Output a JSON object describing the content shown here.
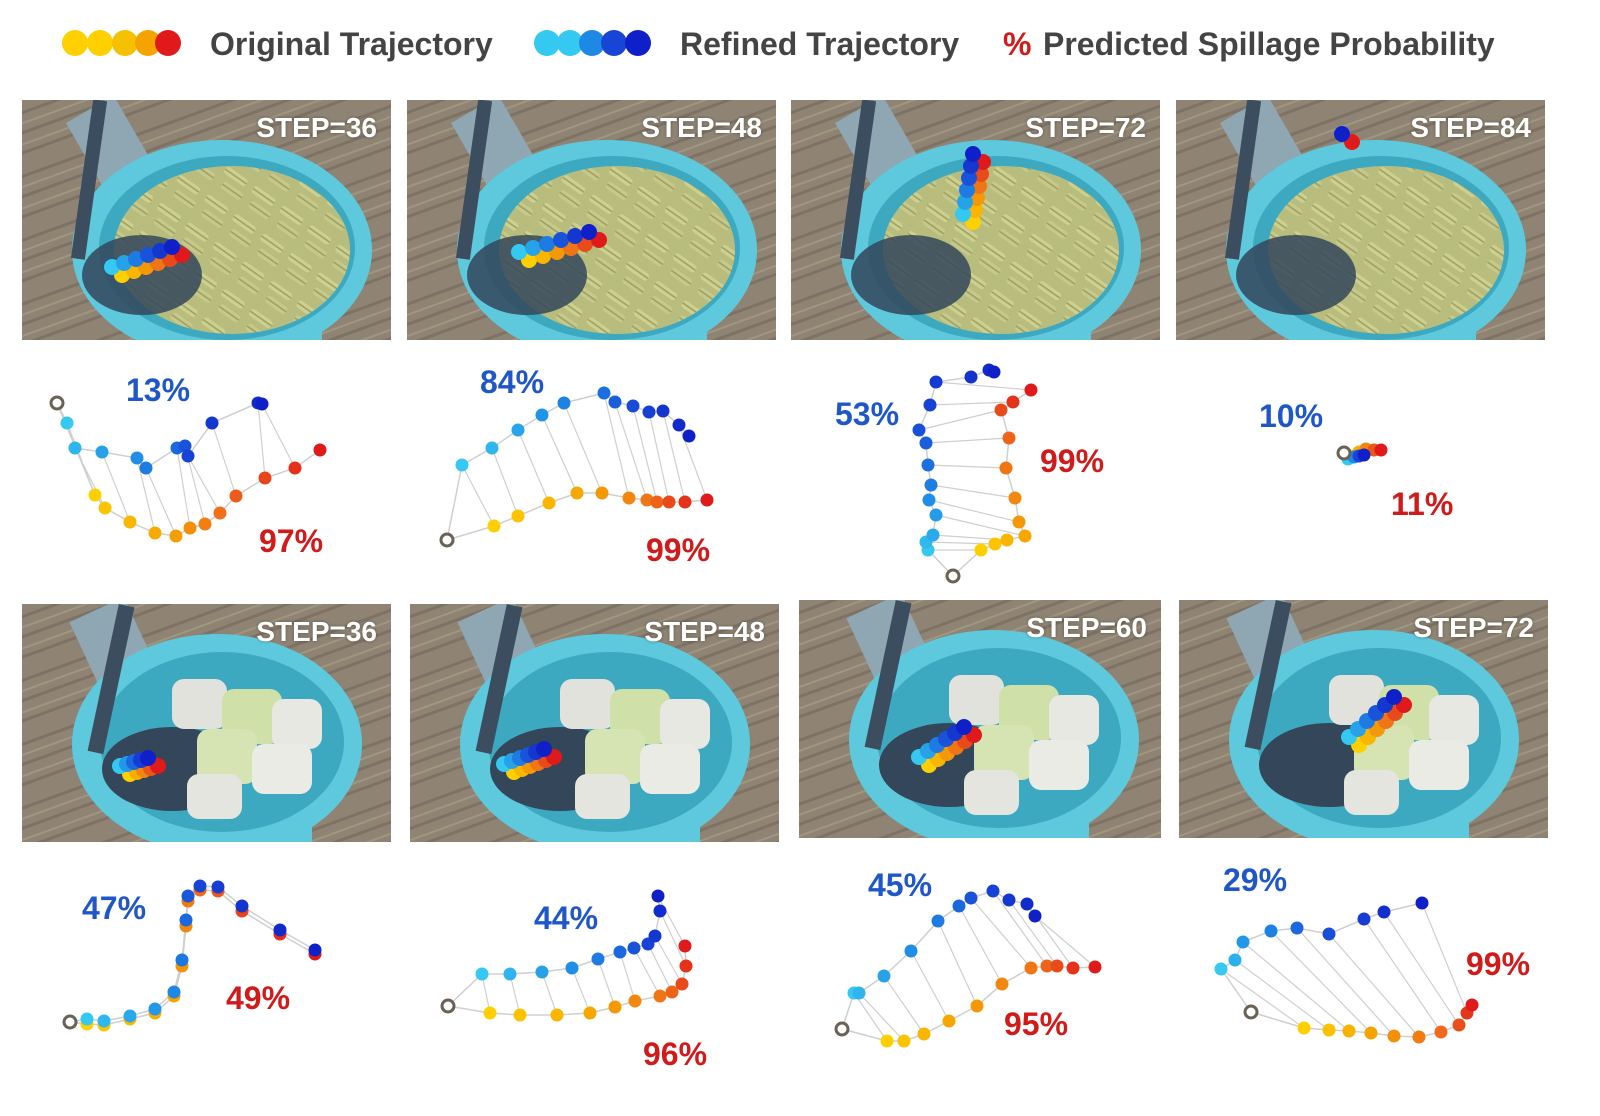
{
  "legend": {
    "original_label": "Original Trajectory",
    "refined_label": "Refined Trajectory",
    "pct_symbol": "%",
    "prob_label": "Predicted Spillage Probability"
  },
  "colors": {
    "original_gradient": [
      "#ffd000",
      "#f5a300",
      "#ef6a1a",
      "#e01a1a"
    ],
    "refined_gradient": [
      "#35c8f0",
      "#1e88e5",
      "#1746d6",
      "#1020c8"
    ],
    "refined_text": "#1f57c9",
    "original_text": "#d11a1a",
    "bowl": "#5ec8dc",
    "table": "#8e8272"
  },
  "panels": [
    {
      "food": "pasta",
      "step": "STEP=36",
      "refined_prob": "13%",
      "original_prob": "97%"
    },
    {
      "food": "pasta",
      "step": "STEP=48",
      "refined_prob": "84%",
      "original_prob": "99%"
    },
    {
      "food": "pasta",
      "step": "STEP=72",
      "refined_prob": "53%",
      "original_prob": "99%"
    },
    {
      "food": "pasta",
      "step": "STEP=84",
      "refined_prob": "10%",
      "original_prob": "11%"
    },
    {
      "food": "tofu",
      "step": "STEP=36",
      "refined_prob": "47%",
      "original_prob": "49%"
    },
    {
      "food": "tofu",
      "step": "STEP=48",
      "refined_prob": "44%",
      "original_prob": "96%"
    },
    {
      "food": "tofu",
      "step": "STEP=60",
      "refined_prob": "45%",
      "original_prob": "95%"
    },
    {
      "food": "tofu",
      "step": "STEP=72",
      "refined_prob": "29%",
      "original_prob": "99%"
    }
  ]
}
